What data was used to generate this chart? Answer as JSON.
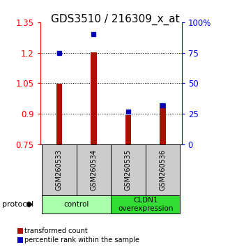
{
  "title": "GDS3510 / 216309_x_at",
  "samples": [
    "GSM260533",
    "GSM260534",
    "GSM260535",
    "GSM260536"
  ],
  "red_values": [
    1.047,
    1.202,
    0.895,
    0.952
  ],
  "blue_percentiles": [
    75.0,
    90.0,
    27.0,
    32.0
  ],
  "ylim_left": [
    0.75,
    1.35
  ],
  "ylim_right": [
    0.0,
    100.0
  ],
  "yticks_left": [
    0.75,
    0.9,
    1.05,
    1.2,
    1.35
  ],
  "yticks_right": [
    0,
    25,
    50,
    75,
    100
  ],
  "ytick_labels_right": [
    "0",
    "25",
    "50",
    "75",
    "100%"
  ],
  "groups": [
    {
      "label": "control",
      "color": "#aaffaa",
      "start": 0,
      "end": 1
    },
    {
      "label": "CLDN1\noverexpression",
      "color": "#33dd33",
      "start": 2,
      "end": 3
    }
  ],
  "bar_color": "#aa1100",
  "dot_color": "#0000bb",
  "bar_width": 0.18,
  "baseline": 0.75,
  "sample_box_color": "#cccccc",
  "protocol_label": "protocol",
  "legend_red_label": "transformed count",
  "legend_blue_label": "percentile rank within the sample",
  "title_fontsize": 11,
  "tick_fontsize": 8.5
}
